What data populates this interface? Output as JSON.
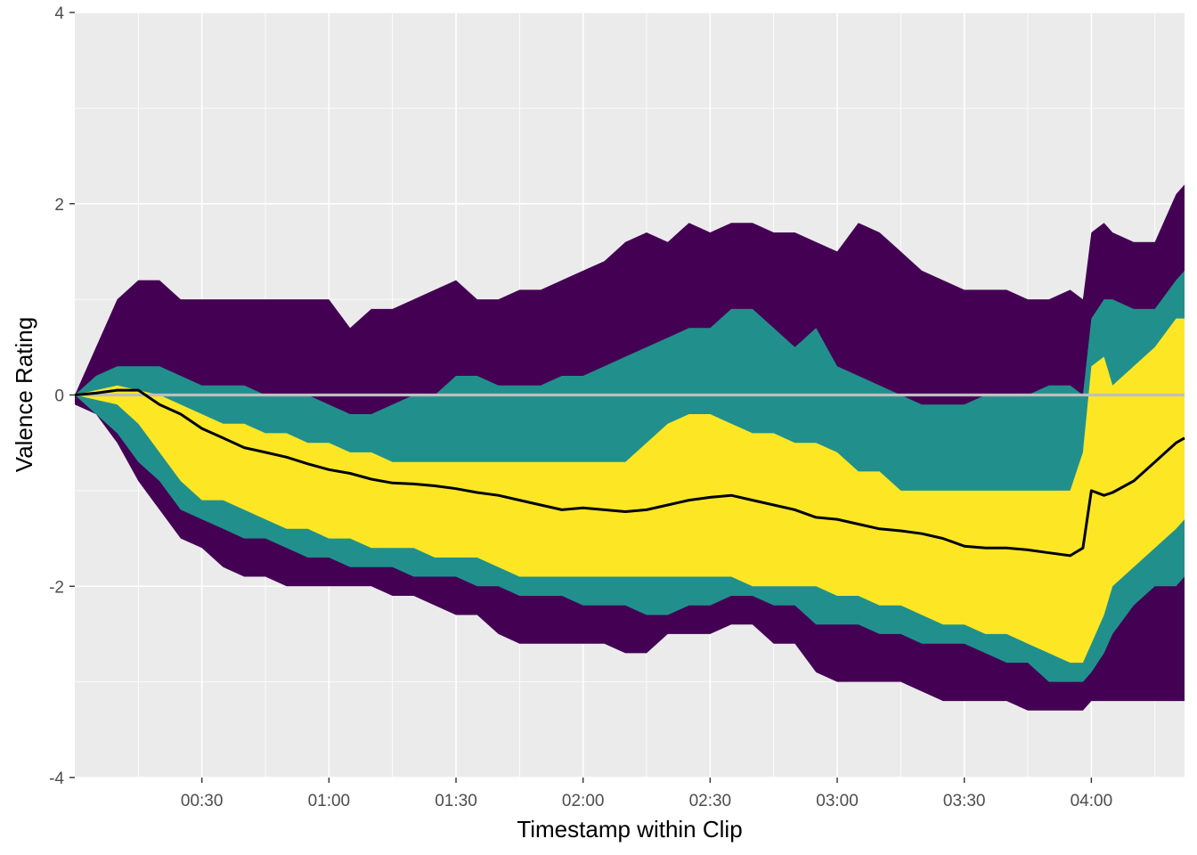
{
  "chart_data": {
    "type": "area",
    "title": "",
    "xlabel": "Timestamp within Clip",
    "ylabel": "Valence Rating",
    "x_unit": "seconds",
    "xlim": [
      0,
      262
    ],
    "ylim": [
      -4,
      4
    ],
    "x_ticks": [
      {
        "value": 30,
        "label": "00:30"
      },
      {
        "value": 60,
        "label": "01:00"
      },
      {
        "value": 90,
        "label": "01:30"
      },
      {
        "value": 120,
        "label": "02:00"
      },
      {
        "value": 150,
        "label": "02:30"
      },
      {
        "value": 180,
        "label": "03:00"
      },
      {
        "value": 210,
        "label": "03:30"
      },
      {
        "value": 240,
        "label": "04:00"
      }
    ],
    "y_ticks": [
      {
        "value": 4,
        "label": "4"
      },
      {
        "value": 2,
        "label": "2"
      },
      {
        "value": 0,
        "label": "0"
      },
      {
        "value": -2,
        "label": "-2"
      },
      {
        "value": -4,
        "label": "-4"
      }
    ],
    "grid": true,
    "legend": "none",
    "reference_line": {
      "y": 0,
      "color": "#bebebe"
    },
    "colors": {
      "panel": "#ebebeb",
      "grid": "#ffffff",
      "outer_band": "#440154",
      "middle_band": "#21908c",
      "inner_band": "#fde725",
      "mean_line": "#000000"
    },
    "x": [
      0,
      5,
      10,
      15,
      20,
      25,
      30,
      35,
      40,
      45,
      50,
      55,
      60,
      65,
      70,
      75,
      80,
      85,
      90,
      95,
      100,
      105,
      110,
      115,
      120,
      125,
      130,
      135,
      140,
      145,
      150,
      155,
      160,
      165,
      170,
      175,
      180,
      185,
      190,
      195,
      200,
      205,
      210,
      215,
      220,
      225,
      230,
      235,
      238,
      240,
      243,
      245,
      250,
      255,
      260,
      262
    ],
    "bands": [
      {
        "fill": "#440154",
        "upper": [
          0,
          0.5,
          1.0,
          1.2,
          1.2,
          1.0,
          1.0,
          1.0,
          1.0,
          1.0,
          1.0,
          1.0,
          1.0,
          0.7,
          0.9,
          0.9,
          1.0,
          1.1,
          1.2,
          1.0,
          1.0,
          1.1,
          1.1,
          1.2,
          1.3,
          1.4,
          1.6,
          1.7,
          1.6,
          1.8,
          1.7,
          1.8,
          1.8,
          1.7,
          1.7,
          1.6,
          1.5,
          1.8,
          1.7,
          1.5,
          1.3,
          1.2,
          1.1,
          1.1,
          1.1,
          1.0,
          1.0,
          1.1,
          1.0,
          1.7,
          1.8,
          1.7,
          1.6,
          1.6,
          2.1,
          2.2
        ],
        "lower": [
          -0.1,
          -0.2,
          -0.5,
          -0.9,
          -1.2,
          -1.5,
          -1.6,
          -1.8,
          -1.9,
          -1.9,
          -2.0,
          -2.0,
          -2.0,
          -2.0,
          -2.0,
          -2.1,
          -2.1,
          -2.2,
          -2.3,
          -2.3,
          -2.5,
          -2.6,
          -2.6,
          -2.6,
          -2.6,
          -2.6,
          -2.7,
          -2.7,
          -2.5,
          -2.5,
          -2.5,
          -2.4,
          -2.4,
          -2.6,
          -2.6,
          -2.9,
          -3.0,
          -3.0,
          -3.0,
          -3.0,
          -3.1,
          -3.2,
          -3.2,
          -3.2,
          -3.2,
          -3.3,
          -3.3,
          -3.3,
          -3.3,
          -3.2,
          -3.2,
          -3.2,
          -3.2,
          -3.2,
          -3.2,
          -3.2
        ]
      },
      {
        "fill": "#21908c",
        "upper": [
          0,
          0.2,
          0.3,
          0.3,
          0.3,
          0.2,
          0.1,
          0.1,
          0.1,
          0.0,
          0.0,
          0.0,
          -0.1,
          -0.2,
          -0.2,
          -0.1,
          0.0,
          0.0,
          0.2,
          0.2,
          0.1,
          0.1,
          0.1,
          0.2,
          0.2,
          0.3,
          0.4,
          0.5,
          0.6,
          0.7,
          0.7,
          0.9,
          0.9,
          0.7,
          0.5,
          0.7,
          0.3,
          0.2,
          0.1,
          0.0,
          -0.1,
          -0.1,
          -0.1,
          0.0,
          0.0,
          0.0,
          0.1,
          0.1,
          0.0,
          0.8,
          1.0,
          1.0,
          0.9,
          0.9,
          1.2,
          1.3
        ],
        "lower": [
          0,
          -0.2,
          -0.4,
          -0.7,
          -0.9,
          -1.2,
          -1.3,
          -1.4,
          -1.5,
          -1.5,
          -1.6,
          -1.7,
          -1.7,
          -1.8,
          -1.8,
          -1.8,
          -1.9,
          -1.9,
          -1.9,
          -2.0,
          -2.0,
          -2.1,
          -2.1,
          -2.1,
          -2.2,
          -2.2,
          -2.2,
          -2.3,
          -2.3,
          -2.2,
          -2.2,
          -2.1,
          -2.1,
          -2.2,
          -2.2,
          -2.4,
          -2.4,
          -2.4,
          -2.5,
          -2.5,
          -2.6,
          -2.6,
          -2.6,
          -2.7,
          -2.8,
          -2.8,
          -3.0,
          -3.0,
          -3.0,
          -2.9,
          -2.7,
          -2.5,
          -2.2,
          -2.0,
          -2.0,
          -1.9
        ]
      },
      {
        "fill": "#fde725",
        "upper": [
          0,
          0.05,
          0.1,
          0.05,
          0.0,
          -0.1,
          -0.2,
          -0.3,
          -0.3,
          -0.4,
          -0.4,
          -0.5,
          -0.5,
          -0.6,
          -0.6,
          -0.7,
          -0.7,
          -0.7,
          -0.7,
          -0.7,
          -0.7,
          -0.7,
          -0.7,
          -0.7,
          -0.7,
          -0.7,
          -0.7,
          -0.5,
          -0.3,
          -0.2,
          -0.2,
          -0.3,
          -0.4,
          -0.4,
          -0.5,
          -0.5,
          -0.6,
          -0.8,
          -0.8,
          -1.0,
          -1.0,
          -1.0,
          -1.0,
          -1.0,
          -1.0,
          -1.0,
          -1.0,
          -1.0,
          -0.6,
          0.3,
          0.4,
          0.1,
          0.3,
          0.5,
          0.8,
          0.8
        ],
        "lower": [
          0,
          -0.05,
          -0.1,
          -0.3,
          -0.6,
          -0.9,
          -1.1,
          -1.1,
          -1.2,
          -1.3,
          -1.4,
          -1.4,
          -1.5,
          -1.5,
          -1.6,
          -1.6,
          -1.6,
          -1.7,
          -1.7,
          -1.7,
          -1.8,
          -1.9,
          -1.9,
          -1.9,
          -1.9,
          -1.9,
          -1.9,
          -1.9,
          -1.9,
          -1.9,
          -1.9,
          -1.9,
          -2.0,
          -2.0,
          -2.0,
          -2.0,
          -2.1,
          -2.1,
          -2.2,
          -2.2,
          -2.3,
          -2.4,
          -2.4,
          -2.5,
          -2.5,
          -2.6,
          -2.7,
          -2.8,
          -2.8,
          -2.6,
          -2.3,
          -2.0,
          -1.8,
          -1.6,
          -1.4,
          -1.3
        ]
      }
    ],
    "series": [
      {
        "color": "#000000",
        "values": [
          0,
          0.02,
          0.05,
          0.05,
          -0.1,
          -0.2,
          -0.35,
          -0.45,
          -0.55,
          -0.6,
          -0.65,
          -0.72,
          -0.78,
          -0.82,
          -0.88,
          -0.92,
          -0.93,
          -0.95,
          -0.98,
          -1.02,
          -1.05,
          -1.1,
          -1.15,
          -1.2,
          -1.18,
          -1.2,
          -1.22,
          -1.2,
          -1.15,
          -1.1,
          -1.07,
          -1.05,
          -1.1,
          -1.15,
          -1.2,
          -1.28,
          -1.3,
          -1.35,
          -1.4,
          -1.42,
          -1.45,
          -1.5,
          -1.58,
          -1.6,
          -1.6,
          -1.62,
          -1.65,
          -1.68,
          -1.6,
          -1.0,
          -1.05,
          -1.02,
          -0.9,
          -0.7,
          -0.5,
          -0.45
        ]
      }
    ]
  }
}
